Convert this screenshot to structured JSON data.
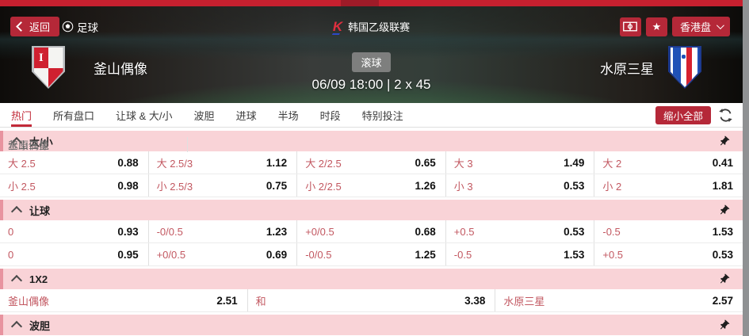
{
  "top_bar": {
    "back_label": "返回",
    "sport_label": "足球",
    "league_label": "韩国乙级联赛",
    "odds_type_label": "香港盘"
  },
  "match": {
    "home_name": "釜山偶像",
    "away_name": "水原三星",
    "status_label": "滚球",
    "time_label": "06/09 18:00 | 2 x 45"
  },
  "tabs": [
    "热门",
    "所有盘口",
    "让球 & 大/小",
    "波胆",
    "进球",
    "半场",
    "时段",
    "特别投注"
  ],
  "active_tab": 0,
  "toolbar": {
    "collapse_all_label": "缩小全部"
  },
  "sections": [
    {
      "title": "大/小",
      "rows": [
        [
          {
            "label": "大 2.5",
            "odds": "0.88"
          },
          {
            "label": "大 2.5/3",
            "odds": "1.12"
          },
          {
            "label": "大 2/2.5",
            "odds": "0.65"
          },
          {
            "label": "大 3",
            "odds": "1.49"
          },
          {
            "label": "大 2",
            "odds": "0.41"
          }
        ],
        [
          {
            "label": "小 2.5",
            "odds": "0.98"
          },
          {
            "label": "小 2.5/3",
            "odds": "0.75"
          },
          {
            "label": "小 2/2.5",
            "odds": "1.26"
          },
          {
            "label": "小 3",
            "odds": "0.53"
          },
          {
            "label": "小 2",
            "odds": "1.81"
          }
        ]
      ]
    },
    {
      "title": "让球",
      "rows": [
        [
          {
            "label": "釜山偶像",
            "team": true
          },
          {
            "label": "0",
            "odds": "0.93"
          },
          {
            "label": "-0/0.5",
            "odds": "1.23"
          },
          {
            "label": "+0/0.5",
            "odds": "0.68"
          },
          {
            "label": "+0.5",
            "odds": "0.53"
          },
          {
            "label": "-0.5",
            "odds": "1.53"
          }
        ],
        [
          {
            "label": "水原三星",
            "team": true
          },
          {
            "label": "0",
            "odds": "0.95"
          },
          {
            "label": "+0/0.5",
            "odds": "0.69"
          },
          {
            "label": "-0/0.5",
            "odds": "1.25"
          },
          {
            "label": "-0.5",
            "odds": "1.53"
          },
          {
            "label": "+0.5",
            "odds": "0.53"
          }
        ]
      ]
    },
    {
      "title": "1X2",
      "rows": [
        [
          {
            "label": "釜山偶像",
            "odds": "2.51"
          },
          {
            "label": "和",
            "odds": "3.38"
          },
          {
            "label": "水原三星",
            "odds": "2.57"
          }
        ]
      ]
    },
    {
      "title": "波胆",
      "rows": []
    }
  ],
  "colors": {
    "accent_red": "#b52838",
    "strip_red": "#c6202f",
    "section_pink": "#f9d3d7",
    "section_accent": "#e8939f",
    "odds_label_red": "#c25760",
    "active_tab_red": "#c22a39"
  }
}
